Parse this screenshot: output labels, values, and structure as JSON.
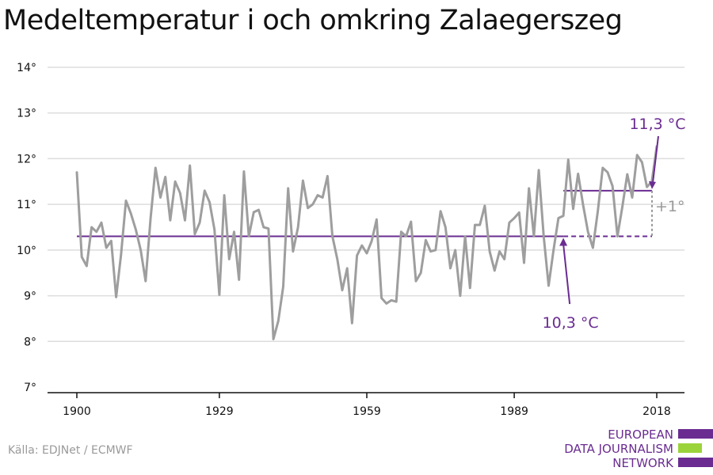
{
  "title": "Medeltemperatur i och omkring Zalaegerszeg",
  "source": "Källa: EDJNet / ECMWF",
  "logo": {
    "lines": [
      "EUROPEAN",
      "DATA JOURNALISM",
      "NETWORK"
    ],
    "colors": {
      "purple": "#6a2c91",
      "green": "#9bd33a"
    }
  },
  "colors": {
    "series": "#9e9e9e",
    "annotation": "#6a2c91",
    "grid": "#dddddd",
    "axis": "#111111"
  },
  "chart_data": {
    "type": "line",
    "title": "Medeltemperatur i och omkring Zalaegerszeg",
    "ylim": [
      7,
      14
    ],
    "xlim": [
      1900,
      2018
    ],
    "y_ticks": [
      7,
      8,
      9,
      10,
      11,
      12,
      13,
      14
    ],
    "y_tick_labels": [
      "7°",
      "8°",
      "9°",
      "10°",
      "11°",
      "12°",
      "13°",
      "14°"
    ],
    "x_ticks": [
      1900,
      1929,
      1959,
      1989,
      2018
    ],
    "x_tick_labels": [
      "1900",
      "1929",
      "1959",
      "1989",
      "2018"
    ],
    "grid": "horizontal",
    "series": [
      {
        "x": [
          1900,
          1901,
          1902,
          1903,
          1904,
          1905,
          1906,
          1907,
          1908,
          1909,
          1910,
          1911,
          1912,
          1913,
          1914,
          1915,
          1916,
          1917,
          1918,
          1919,
          1920,
          1921,
          1922,
          1923,
          1924,
          1925,
          1926,
          1927,
          1928,
          1929,
          1930,
          1931,
          1932,
          1933,
          1934,
          1935,
          1936,
          1937,
          1938,
          1939,
          1940,
          1941,
          1942,
          1943,
          1944,
          1945,
          1946,
          1947,
          1948,
          1949,
          1950,
          1951,
          1952,
          1953,
          1954,
          1955,
          1956,
          1957,
          1958,
          1959,
          1960,
          1961,
          1962,
          1963,
          1964,
          1965,
          1966,
          1967,
          1968,
          1969,
          1970,
          1971,
          1972,
          1973,
          1974,
          1975,
          1976,
          1977,
          1978,
          1979,
          1980,
          1981,
          1982,
          1983,
          1984,
          1985,
          1986,
          1987,
          1988,
          1989,
          1990,
          1991,
          1992,
          1993,
          1994,
          1995,
          1996,
          1997,
          1998,
          1999,
          2000,
          2001,
          2002,
          2003,
          2004,
          2005,
          2006,
          2007,
          2008,
          2009,
          2010,
          2011,
          2012,
          2013,
          2014,
          2015,
          2016,
          2017,
          2018
        ],
        "y": [
          11.7,
          9.85,
          9.65,
          10.5,
          10.4,
          10.6,
          10.05,
          10.2,
          8.97,
          9.9,
          11.08,
          10.8,
          10.45,
          10.0,
          9.32,
          10.7,
          11.8,
          11.15,
          11.6,
          10.65,
          11.5,
          11.25,
          10.65,
          11.85,
          10.35,
          10.6,
          11.3,
          11.05,
          10.45,
          9.02,
          11.2,
          9.8,
          10.4,
          9.35,
          11.72,
          10.3,
          10.83,
          10.88,
          10.5,
          10.47,
          8.05,
          8.45,
          9.2,
          11.35,
          9.97,
          10.5,
          11.52,
          10.92,
          11.0,
          11.2,
          11.15,
          11.62,
          10.3,
          9.8,
          9.12,
          9.6,
          8.4,
          9.88,
          10.1,
          9.93,
          10.2,
          10.67,
          8.95,
          8.83,
          8.9,
          8.87,
          10.4,
          10.3,
          10.62,
          9.32,
          9.5,
          10.22,
          9.97,
          10.0,
          10.85,
          10.5,
          9.6,
          10.0,
          9.0,
          10.3,
          9.17,
          10.55,
          10.55,
          10.97,
          9.97,
          9.55,
          9.97,
          9.8,
          10.6,
          10.7,
          10.82,
          9.72,
          11.35,
          10.3,
          11.75,
          10.3,
          9.22,
          10.0,
          10.7,
          10.75,
          11.98,
          10.9,
          11.67,
          11.0,
          10.4,
          10.05,
          10.85,
          11.8,
          11.7,
          11.4,
          10.3,
          10.95,
          11.66,
          11.15,
          12.08,
          11.92,
          11.38,
          11.5,
          12.27
        ]
      }
    ],
    "reference_lines": [
      {
        "label": "10,3 °C",
        "value": 10.3,
        "x": [
          1900,
          2018
        ]
      },
      {
        "label": "11,3 °C",
        "value": 11.3,
        "x": [
          1999,
          2018
        ]
      }
    ],
    "difference_label": "+1°"
  }
}
